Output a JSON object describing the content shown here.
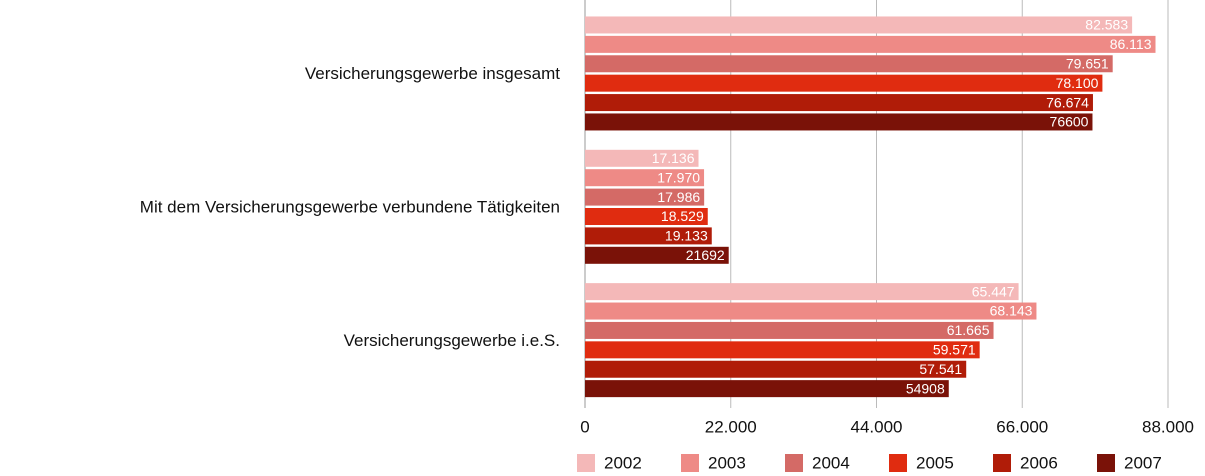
{
  "chart_data": {
    "type": "hbar",
    "categories": [
      "Versicherungsgewerbe insgesamt",
      "Mit dem Versicherungsgewerbe verbundene Tätigkeiten",
      "Versicherungsgewerbe i.e.S."
    ],
    "series": [
      {
        "name": "2002",
        "color": "#f4b8b8",
        "values": [
          82583,
          17136,
          65447
        ],
        "value_labels": [
          "82.583",
          "17.136",
          "65.447"
        ]
      },
      {
        "name": "2003",
        "color": "#ee8a86",
        "values": [
          86113,
          17970,
          68143
        ],
        "value_labels": [
          "86.113",
          "17.970",
          "68.143"
        ]
      },
      {
        "name": "2004",
        "color": "#d46a66",
        "values": [
          79651,
          17986,
          61665
        ],
        "value_labels": [
          "79.651",
          "17.986",
          "61.665"
        ]
      },
      {
        "name": "2005",
        "color": "#e02c10",
        "values": [
          78100,
          18529,
          59571
        ],
        "value_labels": [
          "78.100",
          "18.529",
          "59.571"
        ]
      },
      {
        "name": "2006",
        "color": "#b01c08",
        "values": [
          76674,
          19133,
          57541
        ],
        "value_labels": [
          "76.674",
          "19.133",
          "57.541"
        ]
      },
      {
        "name": "2007",
        "color": "#7a1208",
        "values": [
          76600,
          21692,
          54908
        ],
        "value_labels": [
          "76600",
          "21692",
          "54908"
        ]
      }
    ],
    "xlim": [
      0,
      88000
    ],
    "xticks": [
      0,
      {
        "value": 22000,
        "label": "22.000"
      },
      {
        "value": 44000,
        "label": "44.000"
      },
      {
        "value": 66000,
        "label": "66.000"
      },
      {
        "value": 88000,
        "label": "88.000"
      }
    ],
    "grid": true,
    "legend": "bottom"
  }
}
